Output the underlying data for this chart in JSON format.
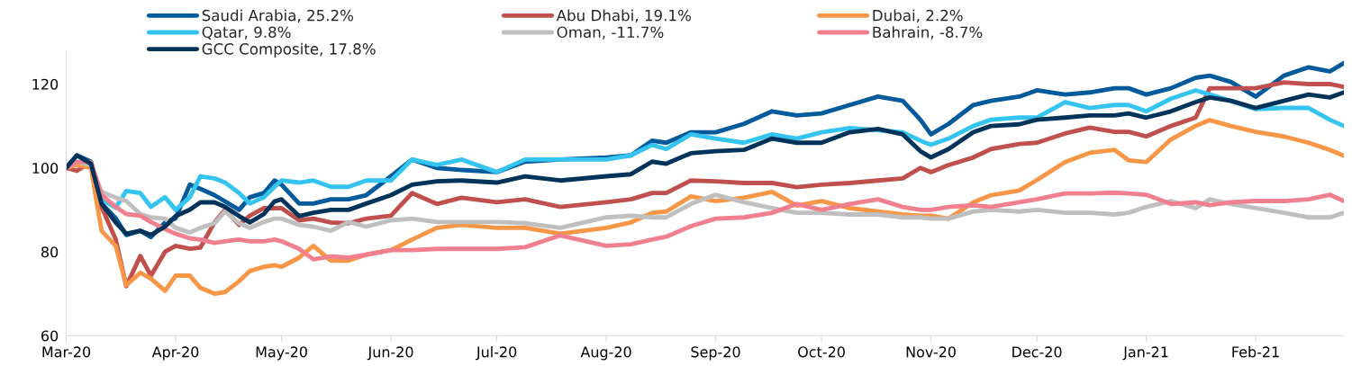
{
  "chart_data": {
    "type": "line",
    "x": [
      "2020-03-01",
      "2020-03-04",
      "2020-03-08",
      "2020-03-11",
      "2020-03-15",
      "2020-03-18",
      "2020-03-22",
      "2020-03-25",
      "2020-03-29",
      "2020-04-01",
      "2020-04-05",
      "2020-04-08",
      "2020-04-12",
      "2020-04-15",
      "2020-04-19",
      "2020-04-22",
      "2020-04-26",
      "2020-04-29",
      "2020-05-01",
      "2020-05-06",
      "2020-05-10",
      "2020-05-15",
      "2020-05-20",
      "2020-05-25",
      "2020-06-01",
      "2020-06-07",
      "2020-06-14",
      "2020-06-21",
      "2020-07-01",
      "2020-07-09",
      "2020-07-19",
      "2020-08-01",
      "2020-08-08",
      "2020-08-14",
      "2020-08-18",
      "2020-08-25",
      "2020-09-01",
      "2020-09-09",
      "2020-09-17",
      "2020-09-24",
      "2020-10-01",
      "2020-10-09",
      "2020-10-17",
      "2020-10-24",
      "2020-10-29",
      "2020-11-01",
      "2020-11-06",
      "2020-11-13",
      "2020-11-18",
      "2020-11-26",
      "2020-12-01",
      "2020-12-09",
      "2020-12-16",
      "2020-12-23",
      "2020-12-27",
      "2021-01-01",
      "2021-01-08",
      "2021-01-15",
      "2021-01-19",
      "2021-01-25",
      "2021-02-01",
      "2021-02-09",
      "2021-02-16",
      "2021-02-22",
      "2021-02-26"
    ],
    "series": [
      {
        "name": "Saudi Arabia, 25.2%",
        "color": "#005a9c",
        "values": [
          100,
          103,
          101.5,
          91.5,
          88,
          84,
          85,
          83.5,
          87,
          88,
          96,
          95,
          93.5,
          92,
          90,
          93,
          94,
          97,
          96,
          91.5,
          91.5,
          92.5,
          92.5,
          93.5,
          98,
          102,
          100,
          99.5,
          99,
          101.5,
          102,
          102.5,
          103,
          106.5,
          106,
          108.5,
          108.5,
          110.5,
          113.5,
          112.5,
          113,
          115,
          117,
          116,
          111.5,
          108,
          110.5,
          115,
          116,
          117,
          118.5,
          117.5,
          118,
          119,
          119,
          117.5,
          119,
          121.5,
          122,
          120.5,
          117,
          122,
          124,
          123,
          125
        ]
      },
      {
        "name": "Abu Dhabi, 19.1%",
        "color": "#c0504d",
        "values": [
          100,
          99.3,
          101.4,
          90.7,
          83,
          71.8,
          79,
          74.3,
          80,
          81.4,
          80.7,
          81,
          87,
          90,
          86.4,
          88.6,
          90.4,
          90.4,
          90.4,
          87.5,
          87.9,
          87,
          86.8,
          87.9,
          88.6,
          94,
          91.4,
          92.9,
          91.8,
          92.5,
          90.7,
          91.8,
          92.5,
          94,
          94,
          97,
          96.8,
          96.4,
          96.4,
          95.4,
          96,
          96.4,
          97,
          97.5,
          100,
          99,
          100.7,
          102.5,
          104.5,
          105.7,
          106,
          108.2,
          109.6,
          108.6,
          108.6,
          107.5,
          110,
          112,
          119,
          119,
          119,
          120.4,
          120,
          120,
          119.3
        ]
      },
      {
        "name": "Dubai, 2.2%",
        "color": "#f79646",
        "values": [
          100,
          100.7,
          100,
          85,
          81.4,
          72,
          75,
          73.6,
          70.7,
          74.3,
          74.3,
          71.4,
          70,
          70.4,
          73,
          75.4,
          76.4,
          76.8,
          76.4,
          78.6,
          81.4,
          77.9,
          77.9,
          79.3,
          80.4,
          82.9,
          85.7,
          86.4,
          85.7,
          85.7,
          84.3,
          85.7,
          87,
          89.3,
          89.6,
          93.2,
          92.1,
          92.9,
          94.3,
          91,
          92.1,
          90.4,
          89.6,
          88.9,
          88.6,
          88.6,
          87.9,
          91.8,
          93.5,
          94.6,
          97.1,
          101.4,
          103.6,
          104.3,
          101.8,
          101.4,
          106.8,
          110,
          111.4,
          110,
          108.6,
          107.5,
          106,
          104.3,
          102.9
        ]
      },
      {
        "name": "Qatar, 9.8%",
        "color": "#35c4f0",
        "values": [
          null,
          null,
          101,
          92.5,
          90.5,
          94.5,
          94,
          90.7,
          93,
          90,
          93,
          98,
          97.5,
          96.5,
          94,
          91.5,
          93,
          95.5,
          97,
          96.5,
          97,
          95.5,
          95.5,
          97,
          97,
          102,
          100.7,
          102,
          99,
          102,
          102,
          102,
          103,
          105.5,
          104.5,
          108,
          107,
          106,
          108,
          107,
          108.5,
          109.5,
          109,
          108.5,
          106.5,
          105.5,
          107,
          110,
          111.5,
          112,
          112,
          115.7,
          114.3,
          115,
          115,
          113.5,
          116.5,
          118.5,
          117.5,
          116,
          114,
          114.3,
          114.3,
          111.5,
          110
        ]
      },
      {
        "name": "Oman, -11.7%",
        "color": "#bfbfbf",
        "values": [
          100,
          101.4,
          100.7,
          94.3,
          92.9,
          92.1,
          89,
          88.2,
          87.9,
          85.7,
          84.6,
          85.7,
          86.8,
          89.6,
          86.8,
          85.7,
          87.1,
          87.9,
          87.9,
          86.4,
          86,
          85,
          87.1,
          86,
          87.5,
          87.9,
          87.1,
          87.1,
          87.1,
          86.8,
          85.7,
          88.2,
          88.6,
          88.2,
          88.2,
          91.4,
          93.6,
          91.8,
          90.4,
          89.3,
          89.3,
          88.9,
          88.9,
          88.2,
          88.2,
          87.9,
          87.9,
          89.6,
          90,
          89.6,
          90,
          89.3,
          89.3,
          88.9,
          89.3,
          90.7,
          92.1,
          90.4,
          92.5,
          91.4,
          90.4,
          89.3,
          88.2,
          88.2,
          89.3
        ]
      },
      {
        "name": "Bahrain, -8.7%",
        "color": "#f08090",
        "values": [
          100,
          101.4,
          101.4,
          93.6,
          90.7,
          89,
          88.6,
          87.1,
          85.4,
          84.3,
          83.2,
          82.9,
          82.1,
          82.5,
          82.9,
          82.5,
          82.5,
          82.9,
          82.5,
          80.7,
          78.2,
          78.9,
          78.6,
          79.3,
          80.4,
          80.4,
          80.7,
          80.7,
          80.7,
          81.1,
          83.9,
          81.4,
          81.8,
          82.9,
          83.6,
          86.1,
          87.9,
          88.2,
          89.3,
          91.4,
          90,
          91.4,
          92.5,
          90.7,
          90,
          90,
          90.7,
          91.1,
          90.7,
          91.8,
          92.5,
          93.9,
          93.9,
          94.1,
          93.9,
          93.6,
          91.4,
          91.8,
          91.1,
          91.8,
          92.1,
          92.1,
          92.5,
          93.6,
          92.1
        ]
      },
      {
        "name": "GCC Composite, 17.8%",
        "color": "#00335a",
        "values": [
          100,
          103,
          101,
          91.5,
          87,
          84.3,
          85,
          84,
          86,
          88.5,
          90,
          91.8,
          91.8,
          90.7,
          88.5,
          87,
          89,
          92,
          92.5,
          88.5,
          89.3,
          90,
          90,
          91.5,
          93.5,
          96,
          96.8,
          97,
          96.5,
          98,
          97,
          98,
          98.5,
          101.5,
          101,
          103.5,
          104,
          104.3,
          107,
          106,
          106,
          108.5,
          109.3,
          108,
          104,
          102.5,
          104.5,
          108.5,
          110,
          110.4,
          111.5,
          112,
          112.5,
          112.5,
          113,
          112,
          113.5,
          115.7,
          116.8,
          116,
          114.3,
          116,
          117.5,
          116.8,
          118
        ]
      }
    ],
    "xlim": [
      "2020-03-01",
      "2021-02-26"
    ],
    "xticks": [
      {
        "value": "2020-03-01",
        "label": "Mar-20"
      },
      {
        "value": "2020-04-01",
        "label": "Apr-20"
      },
      {
        "value": "2020-05-01",
        "label": "May-20"
      },
      {
        "value": "2020-06-01",
        "label": "Jun-20"
      },
      {
        "value": "2020-07-01",
        "label": "Jul-20"
      },
      {
        "value": "2020-08-01",
        "label": "Aug-20"
      },
      {
        "value": "2020-09-01",
        "label": "Sep-20"
      },
      {
        "value": "2020-10-01",
        "label": "Oct-20"
      },
      {
        "value": "2020-11-01",
        "label": "Nov-20"
      },
      {
        "value": "2020-12-01",
        "label": "Dec-20"
      },
      {
        "value": "2021-01-01",
        "label": "Jan-21"
      },
      {
        "value": "2021-02-01",
        "label": "Feb-21"
      }
    ],
    "ylim": [
      60,
      128
    ],
    "yticks": [
      60,
      80,
      100,
      120
    ],
    "legend": "top left",
    "grid": false,
    "line_style": "solid",
    "marker": "none"
  }
}
